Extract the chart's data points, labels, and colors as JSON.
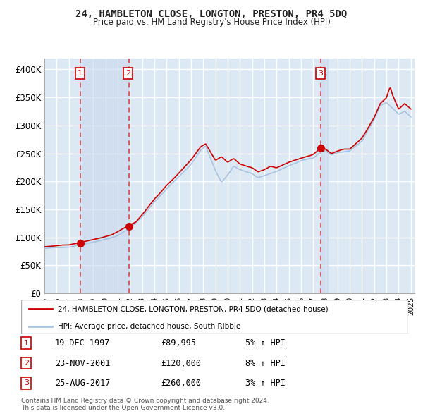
{
  "title": "24, HAMBLETON CLOSE, LONGTON, PRESTON, PR4 5DQ",
  "subtitle": "Price paid vs. HM Land Registry's House Price Index (HPI)",
  "background_color": "#ffffff",
  "plot_bg_color": "#dce9f5",
  "grid_color": "#ffffff",
  "red_line_color": "#cc0000",
  "blue_line_color": "#aac4e0",
  "vline_color": "#dd4444",
  "sale_marker_color": "#cc0000",
  "ylim": [
    0,
    420000
  ],
  "yticks": [
    0,
    50000,
    100000,
    150000,
    200000,
    250000,
    300000,
    350000,
    400000
  ],
  "ytick_labels": [
    "£0",
    "£50K",
    "£100K",
    "£150K",
    "£200K",
    "£250K",
    "£300K",
    "£350K",
    "£400K"
  ],
  "sale_dates": [
    1997.96,
    2001.9,
    2017.65
  ],
  "sale_prices": [
    89995,
    120000,
    260000
  ],
  "sale_labels": [
    "1",
    "2",
    "3"
  ],
  "legend_red": "24, HAMBLETON CLOSE, LONGTON, PRESTON, PR4 5DQ (detached house)",
  "legend_blue": "HPI: Average price, detached house, South Ribble",
  "table_rows": [
    [
      "1",
      "19-DEC-1997",
      "£89,995",
      "5% ↑ HPI"
    ],
    [
      "2",
      "23-NOV-2001",
      "£120,000",
      "8% ↑ HPI"
    ],
    [
      "3",
      "25-AUG-2017",
      "£260,000",
      "3% ↑ HPI"
    ]
  ],
  "footnote1": "Contains HM Land Registry data © Crown copyright and database right 2024.",
  "footnote2": "This data is licensed under the Open Government Licence v3.0.",
  "blue_breakpoints": [
    [
      1995.0,
      80000
    ],
    [
      1996.0,
      81500
    ],
    [
      1997.0,
      83000
    ],
    [
      1998.0,
      88000
    ],
    [
      1999.0,
      93000
    ],
    [
      2000.0,
      98000
    ],
    [
      2001.0,
      104000
    ],
    [
      2002.0,
      118000
    ],
    [
      2003.0,
      138000
    ],
    [
      2004.0,
      165000
    ],
    [
      2005.0,
      188000
    ],
    [
      2006.0,
      210000
    ],
    [
      2007.0,
      232000
    ],
    [
      2007.8,
      258000
    ],
    [
      2008.2,
      265000
    ],
    [
      2009.0,
      220000
    ],
    [
      2009.5,
      200000
    ],
    [
      2010.0,
      212000
    ],
    [
      2010.5,
      228000
    ],
    [
      2011.0,
      222000
    ],
    [
      2012.0,
      215000
    ],
    [
      2012.5,
      207000
    ],
    [
      2013.0,
      210000
    ],
    [
      2014.0,
      218000
    ],
    [
      2015.0,
      228000
    ],
    [
      2016.0,
      237000
    ],
    [
      2017.0,
      242000
    ],
    [
      2017.7,
      255000
    ],
    [
      2018.0,
      255000
    ],
    [
      2018.5,
      248000
    ],
    [
      2019.0,
      252000
    ],
    [
      2020.0,
      255000
    ],
    [
      2021.0,
      272000
    ],
    [
      2022.0,
      310000
    ],
    [
      2022.5,
      335000
    ],
    [
      2023.0,
      340000
    ],
    [
      2023.5,
      330000
    ],
    [
      2024.0,
      320000
    ],
    [
      2024.5,
      325000
    ],
    [
      2025.0,
      315000
    ]
  ],
  "red_breakpoints": [
    [
      1995.0,
      83000
    ],
    [
      1997.0,
      86000
    ],
    [
      1997.96,
      89995
    ],
    [
      1998.5,
      93000
    ],
    [
      1999.5,
      98000
    ],
    [
      2000.5,
      103000
    ],
    [
      2001.9,
      120000
    ],
    [
      2002.5,
      127000
    ],
    [
      2003.0,
      140000
    ],
    [
      2004.0,
      168000
    ],
    [
      2005.0,
      192000
    ],
    [
      2006.0,
      214000
    ],
    [
      2007.0,
      238000
    ],
    [
      2007.8,
      262000
    ],
    [
      2008.2,
      267000
    ],
    [
      2009.0,
      238000
    ],
    [
      2009.5,
      245000
    ],
    [
      2010.0,
      235000
    ],
    [
      2010.5,
      242000
    ],
    [
      2011.0,
      232000
    ],
    [
      2012.0,
      225000
    ],
    [
      2012.5,
      218000
    ],
    [
      2013.0,
      222000
    ],
    [
      2013.5,
      228000
    ],
    [
      2014.0,
      225000
    ],
    [
      2015.0,
      235000
    ],
    [
      2016.0,
      242000
    ],
    [
      2017.0,
      248000
    ],
    [
      2017.65,
      260000
    ],
    [
      2018.0,
      258000
    ],
    [
      2018.5,
      250000
    ],
    [
      2019.0,
      255000
    ],
    [
      2019.5,
      258000
    ],
    [
      2020.0,
      258000
    ],
    [
      2021.0,
      278000
    ],
    [
      2022.0,
      315000
    ],
    [
      2022.5,
      340000
    ],
    [
      2023.0,
      350000
    ],
    [
      2023.3,
      370000
    ],
    [
      2023.5,
      355000
    ],
    [
      2024.0,
      330000
    ],
    [
      2024.5,
      340000
    ],
    [
      2025.0,
      330000
    ]
  ]
}
